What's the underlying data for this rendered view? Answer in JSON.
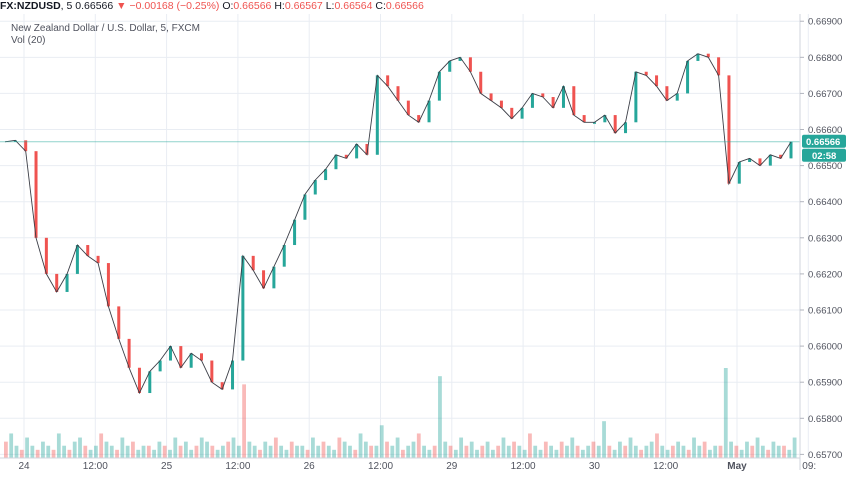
{
  "header": {
    "symbol": "FX:NZDUSD",
    "interval": "5",
    "last": "0.66566",
    "change": "−0.00168 (−0.25%)",
    "o_label": "O:",
    "open": "0.66566",
    "h_label": "H:",
    "high": "0.66567",
    "l_label": "L:",
    "low": "0.66564",
    "c_label": "C:",
    "close": "0.66566"
  },
  "legend": {
    "title": "New Zealand Dollar / U.S. Dollar, 5, FXCM",
    "volume": "Vol (20)"
  },
  "price_label": "0.66566",
  "countdown": "02:58",
  "colors": {
    "up": "#26a69a",
    "down": "#ef5350",
    "last_line": "#26a69a"
  },
  "chart_data": {
    "type": "line",
    "ylim": [
      0.6569,
      0.6692
    ],
    "y_ticks": [
      "0.66900",
      "0.66800",
      "0.66700",
      "0.66600",
      "0.66500",
      "0.66400",
      "0.66300",
      "0.66200",
      "0.66100",
      "0.66000",
      "0.65900",
      "0.65800",
      "0.65700"
    ],
    "x_ticks": [
      "24",
      "12:00",
      "25",
      "12:00",
      "26",
      "12:00",
      "29",
      "12:00",
      "30",
      "12:00",
      "May",
      "09:"
    ],
    "x_labels_bold": [
      "May"
    ],
    "last_price": 0.66566,
    "price_path": [
      [
        0,
        0.66566
      ],
      [
        2,
        0.6657
      ],
      [
        4,
        0.6654
      ],
      [
        6,
        0.663
      ],
      [
        8,
        0.662
      ],
      [
        10,
        0.6615
      ],
      [
        12,
        0.662
      ],
      [
        14,
        0.6628
      ],
      [
        16,
        0.6625
      ],
      [
        18,
        0.6623
      ],
      [
        20,
        0.6611
      ],
      [
        22,
        0.6602
      ],
      [
        24,
        0.6594
      ],
      [
        26,
        0.6587
      ],
      [
        28,
        0.6593
      ],
      [
        30,
        0.6596
      ],
      [
        32,
        0.66
      ],
      [
        34,
        0.6594
      ],
      [
        36,
        0.6598
      ],
      [
        38,
        0.6596
      ],
      [
        40,
        0.659
      ],
      [
        42,
        0.6588
      ],
      [
        44,
        0.6596
      ],
      [
        46,
        0.6625
      ],
      [
        48,
        0.6621
      ],
      [
        50,
        0.6616
      ],
      [
        52,
        0.6622
      ],
      [
        54,
        0.6628
      ],
      [
        56,
        0.6635
      ],
      [
        58,
        0.6642
      ],
      [
        60,
        0.6646
      ],
      [
        62,
        0.6649
      ],
      [
        64,
        0.6653
      ],
      [
        66,
        0.6652
      ],
      [
        68,
        0.6656
      ],
      [
        70,
        0.6653
      ],
      [
        72,
        0.6675
      ],
      [
        74,
        0.6672
      ],
      [
        76,
        0.6668
      ],
      [
        78,
        0.6664
      ],
      [
        80,
        0.6662
      ],
      [
        82,
        0.6668
      ],
      [
        84,
        0.6676
      ],
      [
        86,
        0.6679
      ],
      [
        88,
        0.668
      ],
      [
        90,
        0.6676
      ],
      [
        92,
        0.667
      ],
      [
        94,
        0.6668
      ],
      [
        96,
        0.6666
      ],
      [
        98,
        0.6663
      ],
      [
        100,
        0.6666
      ],
      [
        102,
        0.667
      ],
      [
        104,
        0.6669
      ],
      [
        106,
        0.6666
      ],
      [
        108,
        0.6672
      ],
      [
        110,
        0.6664
      ],
      [
        112,
        0.6662
      ],
      [
        114,
        0.6662
      ],
      [
        116,
        0.6664
      ],
      [
        118,
        0.6659
      ],
      [
        120,
        0.6662
      ],
      [
        122,
        0.6676
      ],
      [
        124,
        0.6675
      ],
      [
        126,
        0.6672
      ],
      [
        128,
        0.6668
      ],
      [
        130,
        0.667
      ],
      [
        132,
        0.6679
      ],
      [
        134,
        0.6681
      ],
      [
        136,
        0.668
      ],
      [
        138,
        0.6675
      ],
      [
        140,
        0.6645
      ],
      [
        142,
        0.6651
      ],
      [
        144,
        0.6652
      ],
      [
        146,
        0.665
      ],
      [
        148,
        0.6653
      ],
      [
        150,
        0.6652
      ],
      [
        152,
        0.66566
      ]
    ],
    "volume": [
      4,
      6,
      3,
      2,
      5,
      3,
      2,
      4,
      3,
      2,
      6,
      3,
      2,
      4,
      5,
      3,
      2,
      3,
      6,
      4,
      3,
      2,
      5,
      3,
      4,
      2,
      3,
      3,
      2,
      4,
      3,
      2,
      5,
      3,
      4,
      2,
      3,
      5,
      4,
      3,
      2,
      3,
      4,
      5,
      3,
      18,
      4,
      3,
      2,
      4,
      3,
      5,
      3,
      2,
      4,
      3,
      3,
      2,
      5,
      3,
      4,
      3,
      2,
      5,
      4,
      3,
      2,
      6,
      4,
      3,
      3,
      8,
      4,
      3,
      5,
      2,
      3,
      4,
      6,
      3,
      2,
      3,
      20,
      4,
      3,
      2,
      5,
      3,
      4,
      2,
      3,
      4,
      2,
      3,
      5,
      3,
      4,
      3,
      2,
      6,
      3,
      2,
      4,
      3,
      2,
      4,
      3,
      5,
      3,
      2,
      3,
      4,
      3,
      9,
      3,
      2,
      4,
      3,
      5,
      3,
      2,
      3,
      4,
      6,
      3,
      2,
      3,
      4,
      3,
      2,
      5,
      3,
      4,
      2,
      3,
      3,
      22,
      4,
      3,
      2,
      4,
      3,
      5,
      3,
      2,
      4,
      3,
      3,
      2,
      5
    ]
  }
}
